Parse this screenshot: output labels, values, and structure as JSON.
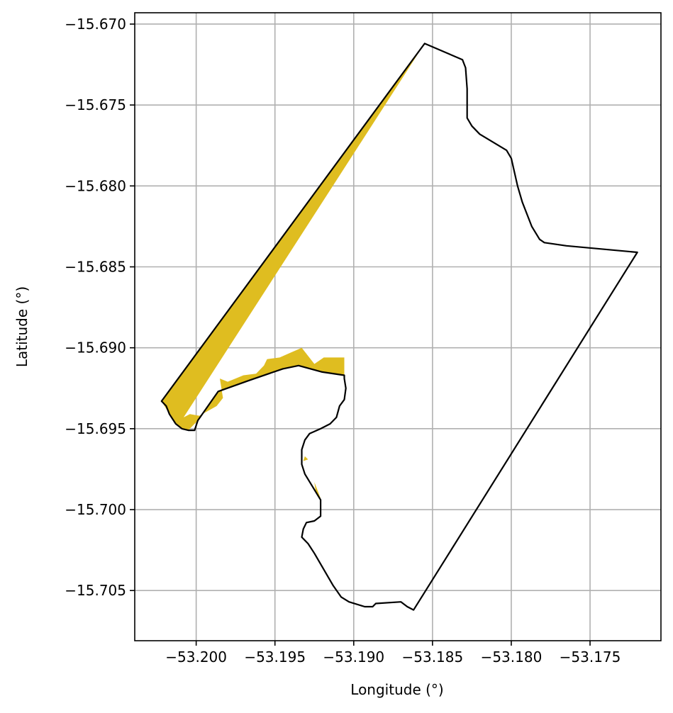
{
  "chart_data": {
    "type": "map",
    "title": "",
    "xlabel": "Longitude (°)",
    "ylabel": "Latitude (°)",
    "xlim": [
      -53.2039,
      -53.1705
    ],
    "ylim": [
      -15.7081,
      -15.6693
    ],
    "grid": true,
    "x_ticks": [
      {
        "value": -53.2,
        "label": "−53.200"
      },
      {
        "value": -53.195,
        "label": "−53.195"
      },
      {
        "value": -53.19,
        "label": "−53.190"
      },
      {
        "value": -53.185,
        "label": "−53.185"
      },
      {
        "value": -53.18,
        "label": "−53.180"
      },
      {
        "value": -53.175,
        "label": "−53.175"
      }
    ],
    "y_ticks": [
      {
        "value": -15.67,
        "label": "−15.670"
      },
      {
        "value": -15.675,
        "label": "−15.675"
      },
      {
        "value": -15.68,
        "label": "−15.680"
      },
      {
        "value": -15.685,
        "label": "−15.685"
      },
      {
        "value": -15.69,
        "label": "−15.690"
      },
      {
        "value": -15.695,
        "label": "−15.695"
      },
      {
        "value": -15.7,
        "label": "−15.700"
      },
      {
        "value": -15.705,
        "label": "−15.705"
      }
    ],
    "colors": {
      "fill": "#DFBD20",
      "boundary": "#000000",
      "grid": "#b0b0b0"
    },
    "filled_regions": [
      {
        "name": "strip",
        "points": [
          [
            -53.2022,
            -15.6933
          ],
          [
            -53.1855,
            -15.6712
          ],
          [
            -53.2008,
            -15.6943
          ],
          [
            -53.2004,
            -15.6941
          ],
          [
            -53.1998,
            -15.6942
          ],
          [
            -53.1987,
            -15.6936
          ],
          [
            -53.1983,
            -15.6931
          ],
          [
            -53.1985,
            -15.6919
          ],
          [
            -53.198,
            -15.6921
          ],
          [
            -53.197,
            -15.6917
          ],
          [
            -53.1962,
            -15.6916
          ],
          [
            -53.1957,
            -15.6911
          ],
          [
            -53.1955,
            -15.6907
          ],
          [
            -53.1947,
            -15.6906
          ],
          [
            -53.194,
            -15.6903
          ],
          [
            -53.1933,
            -15.69
          ],
          [
            -53.1925,
            -15.691
          ],
          [
            -53.1919,
            -15.6906
          ],
          [
            -53.1915,
            -15.6906
          ],
          [
            -53.1906,
            -15.6906
          ],
          [
            -53.1906,
            -15.6917
          ],
          [
            -53.192,
            -15.6915
          ],
          [
            -53.1935,
            -15.6911
          ],
          [
            -53.1945,
            -15.6913
          ],
          [
            -53.1966,
            -15.692
          ],
          [
            -53.1986,
            -15.6927
          ],
          [
            -53.1999,
            -15.6945
          ],
          [
            -53.2005,
            -15.6951
          ],
          [
            -53.2009,
            -15.695
          ],
          [
            -53.2013,
            -15.6947
          ],
          [
            -53.2017,
            -15.6941
          ]
        ]
      },
      {
        "name": "notch-a",
        "points": [
          [
            -53.1931,
            -15.6967
          ],
          [
            -53.1929,
            -15.6969
          ],
          [
            -53.1932,
            -15.697
          ]
        ]
      },
      {
        "name": "notch-b",
        "points": [
          [
            -53.1925,
            -15.6983
          ],
          [
            -53.1921,
            -15.6993
          ],
          [
            -53.1924,
            -15.699
          ]
        ]
      }
    ],
    "boundary": [
      [
        -53.2022,
        -15.6933
      ],
      [
        -53.1855,
        -15.6712
      ],
      [
        -53.1831,
        -15.6722
      ],
      [
        -53.1829,
        -15.6727
      ],
      [
        -53.1828,
        -15.674
      ],
      [
        -53.1828,
        -15.6758
      ],
      [
        -53.1825,
        -15.6763
      ],
      [
        -53.182,
        -15.6768
      ],
      [
        -53.1803,
        -15.6778
      ],
      [
        -53.18,
        -15.6783
      ],
      [
        -53.1796,
        -15.68
      ],
      [
        -53.1793,
        -15.681
      ],
      [
        -53.1787,
        -15.6825
      ],
      [
        -53.1782,
        -15.6833
      ],
      [
        -53.1779,
        -15.6835
      ],
      [
        -53.1765,
        -15.6837
      ],
      [
        -53.172,
        -15.6841
      ],
      [
        -53.1862,
        -15.7062
      ],
      [
        -53.1866,
        -15.706
      ],
      [
        -53.187,
        -15.7057
      ],
      [
        -53.1886,
        -15.7058
      ],
      [
        -53.1888,
        -15.706
      ],
      [
        -53.1893,
        -15.706
      ],
      [
        -53.1903,
        -15.7057
      ],
      [
        -53.1908,
        -15.7054
      ],
      [
        -53.1913,
        -15.7047
      ],
      [
        -53.1925,
        -15.7027
      ],
      [
        -53.1929,
        -15.7021
      ],
      [
        -53.1933,
        -15.7017
      ],
      [
        -53.1932,
        -15.7012
      ],
      [
        -53.193,
        -15.7008
      ],
      [
        -53.1925,
        -15.7007
      ],
      [
        -53.1921,
        -15.7004
      ],
      [
        -53.1921,
        -15.6994
      ],
      [
        -53.1931,
        -15.6978
      ],
      [
        -53.1933,
        -15.6972
      ],
      [
        -53.1933,
        -15.6963
      ],
      [
        -53.1931,
        -15.6957
      ],
      [
        -53.1928,
        -15.6953
      ],
      [
        -53.1921,
        -15.695
      ],
      [
        -53.1915,
        -15.6947
      ],
      [
        -53.1911,
        -15.6943
      ],
      [
        -53.1909,
        -15.6936
      ],
      [
        -53.1906,
        -15.6932
      ],
      [
        -53.1905,
        -15.6925
      ],
      [
        -53.1906,
        -15.6919
      ],
      [
        -53.1906,
        -15.6917
      ],
      [
        -53.192,
        -15.6915
      ],
      [
        -53.1935,
        -15.6911
      ],
      [
        -53.1945,
        -15.6913
      ],
      [
        -53.1966,
        -15.692
      ],
      [
        -53.1986,
        -15.6927
      ],
      [
        -53.1999,
        -15.6945
      ],
      [
        -53.2001,
        -15.6951
      ],
      [
        -53.2005,
        -15.6951
      ],
      [
        -53.2009,
        -15.695
      ],
      [
        -53.2013,
        -15.6947
      ],
      [
        -53.2017,
        -15.6941
      ],
      [
        -53.2019,
        -15.6936
      ]
    ]
  }
}
